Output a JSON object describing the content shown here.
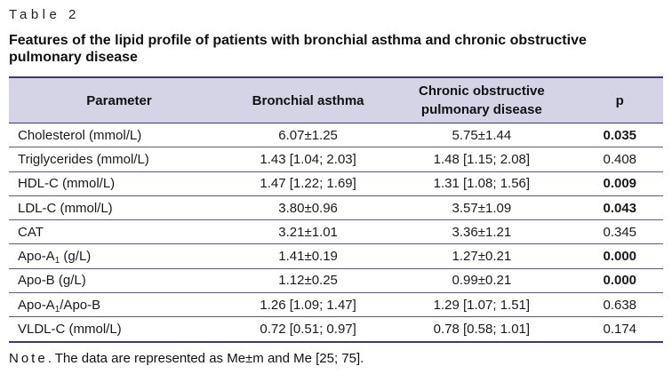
{
  "table_label": "Table 2",
  "title": "Features of the lipid profile of patients with bronchial asthma and chronic obstructive pulmonary disease",
  "headers": [
    "Parameter",
    "Bronchial asthma",
    "Chronic obstructive pulmonary disease",
    "p"
  ],
  "rows": [
    {
      "param": "Cholesterol (mmol/L)",
      "asthma": "6.07±1.25",
      "copd": "5.75±1.44",
      "p": "0.035",
      "p_bold": true
    },
    {
      "param": "Triglycerides (mmol/L)",
      "asthma": "1.43 [1.04; 2.03]",
      "copd": "1.48 [1.15; 2.08]",
      "p": "0.408",
      "p_bold": false
    },
    {
      "param": "HDL-C (mmol/L)",
      "asthma": "1.47 [1.22; 1.69]",
      "copd": "1.31 [1.08; 1.56]",
      "p": "0.009",
      "p_bold": true
    },
    {
      "param": "LDL-C (mmol/L)",
      "asthma": "3.80±0.96",
      "copd": "3.57±1.09",
      "p": "0.043",
      "p_bold": true
    },
    {
      "param": "CAT",
      "asthma": "3.21±1.01",
      "copd": "3.36±1.21",
      "p": "0.345",
      "p_bold": false
    },
    {
      "param_main": "Apo-A",
      "param_sub": "1",
      "param_tail": " (g/L)",
      "asthma": "1.41±0.19",
      "copd": "1.27±0.21",
      "p": "0.000",
      "p_bold": true
    },
    {
      "param": "Apo-B (g/L)",
      "asthma": "1.12±0.25",
      "copd": "0.99±0.21",
      "p": "0.000",
      "p_bold": true
    },
    {
      "param_main": "Apo-A",
      "param_sub": "1",
      "param_tail": "/Apo-B",
      "asthma": "1.26 [1.09; 1.47]",
      "copd": "1.29 [1.07; 1.51]",
      "p": "0.638",
      "p_bold": false
    },
    {
      "param": "VLDL-C (mmol/L)",
      "asthma": "0.72 [0.51; 0.97]",
      "copd": "0.78 [0.58; 1.01]",
      "p": "0.174",
      "p_bold": false
    }
  ],
  "note_label": "Note",
  "note_text": ". The data are represented as Me±m and Me [25; 75]."
}
